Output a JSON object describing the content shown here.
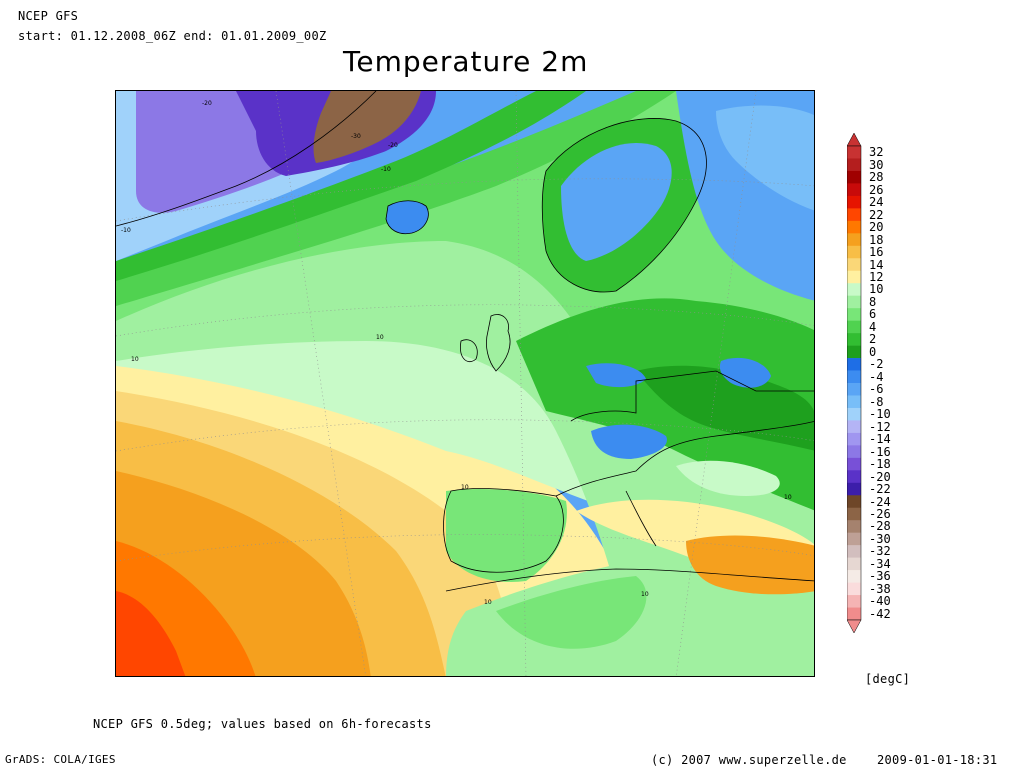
{
  "header": {
    "model": "NCEP GFS",
    "period": "start: 01.12.2008_06Z end: 01.01.2009_00Z"
  },
  "title": "Temperature 2m",
  "map": {
    "contour_labels": [
      "-20",
      "-30",
      "-20",
      "-10",
      "-10",
      "10",
      "10",
      "10",
      "10",
      "10",
      "10"
    ]
  },
  "legend": {
    "unit": "[degC]",
    "levels": [
      {
        "label": "32",
        "color": "#c83232"
      },
      {
        "label": "30",
        "color": "#b41e1e"
      },
      {
        "label": "28",
        "color": "#a00000"
      },
      {
        "label": "26",
        "color": "#c80a0a"
      },
      {
        "label": "24",
        "color": "#e61400"
      },
      {
        "label": "22",
        "color": "#ff4600"
      },
      {
        "label": "20",
        "color": "#ff7800"
      },
      {
        "label": "18",
        "color": "#f5a01e"
      },
      {
        "label": "16",
        "color": "#f8be46"
      },
      {
        "label": "14",
        "color": "#fad778"
      },
      {
        "label": "12",
        "color": "#fff0a0"
      },
      {
        "label": "10",
        "color": "#c8fac8"
      },
      {
        "label": "8",
        "color": "#a0f0a0"
      },
      {
        "label": "6",
        "color": "#78e678"
      },
      {
        "label": "4",
        "color": "#50d250"
      },
      {
        "label": "2",
        "color": "#32be32"
      },
      {
        "label": "0",
        "color": "#1ea01e"
      },
      {
        "label": "-2",
        "color": "#1e6ee6"
      },
      {
        "label": "-4",
        "color": "#3c8cf0"
      },
      {
        "label": "-6",
        "color": "#5aa5f5"
      },
      {
        "label": "-8",
        "color": "#78bef8"
      },
      {
        "label": "-10",
        "color": "#a0d2fa"
      },
      {
        "label": "-12",
        "color": "#b4b4f5"
      },
      {
        "label": "-14",
        "color": "#a096f0"
      },
      {
        "label": "-16",
        "color": "#8c78e6"
      },
      {
        "label": "-18",
        "color": "#7850d7"
      },
      {
        "label": "-20",
        "color": "#5a32c8"
      },
      {
        "label": "-22",
        "color": "#3c1eaa"
      },
      {
        "label": "-24",
        "color": "#6e4628"
      },
      {
        "label": "-26",
        "color": "#8c6446"
      },
      {
        "label": "-28",
        "color": "#a5826e"
      },
      {
        "label": "-30",
        "color": "#bea096"
      },
      {
        "label": "-32",
        "color": "#d2bebe"
      },
      {
        "label": "-34",
        "color": "#e6d7d2"
      },
      {
        "label": "-36",
        "color": "#f5ebe6"
      },
      {
        "label": "-38",
        "color": "#fadcdc"
      },
      {
        "label": "-40",
        "color": "#f5b4b4"
      },
      {
        "label": "-42",
        "color": "#f08c8c"
      }
    ]
  },
  "footer": {
    "note": "NCEP GFS 0.5deg; values based on 6h-forecasts",
    "grads": "GrADS: COLA/IGES",
    "copyright": "(c) 2007 www.superzelle.de",
    "date": "2009-01-01-18:31"
  }
}
